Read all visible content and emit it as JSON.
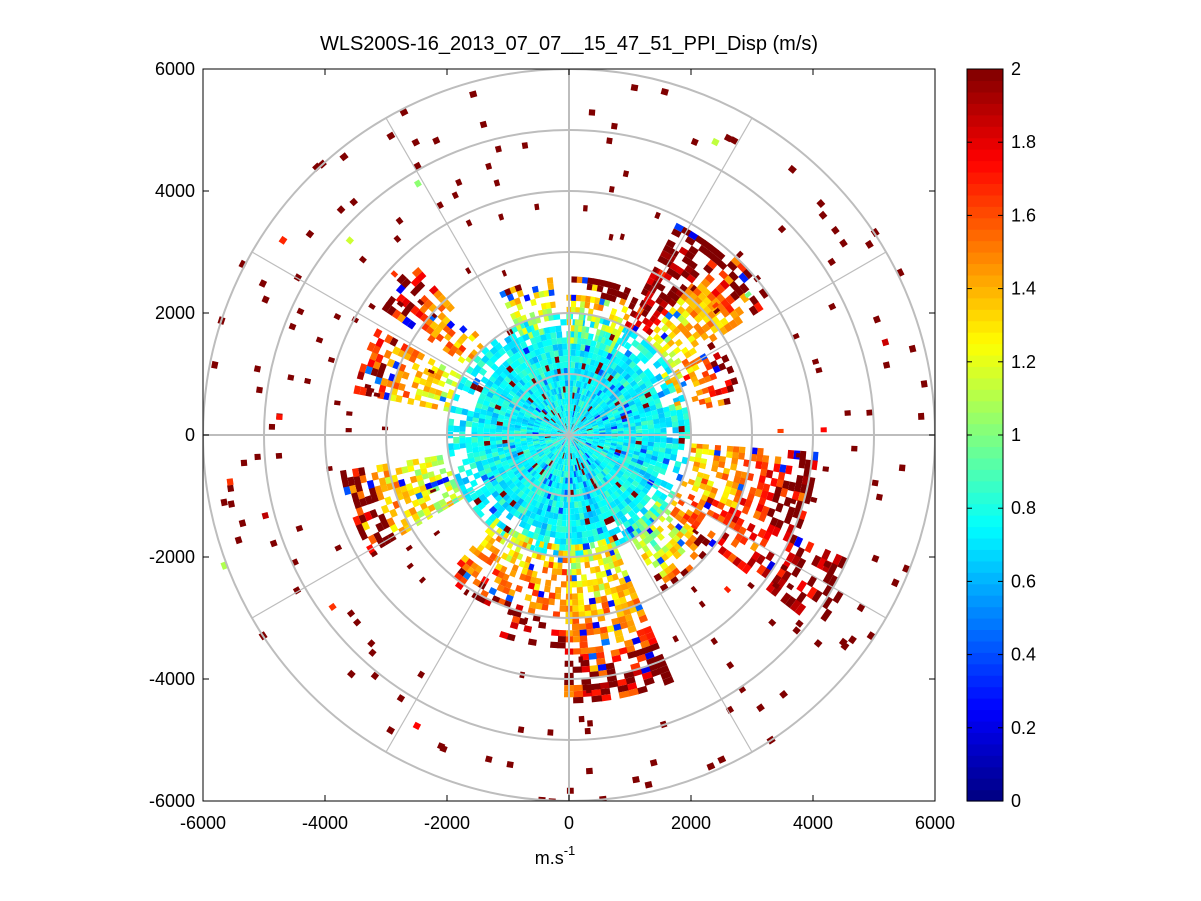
{
  "chart_data": {
    "type": "heatmap",
    "subtype": "polar-ppi",
    "title": "WLS200S-16_2013_07_07__15_47_51_PPI_Disp (m/s)",
    "xlabel": "m.s",
    "xlabel_superscript": "-1",
    "ylabel": "",
    "xlim": [
      -6000,
      6000
    ],
    "ylim": [
      -6000,
      6000
    ],
    "xticks": [
      -6000,
      -4000,
      -2000,
      0,
      2000,
      4000,
      6000
    ],
    "yticks": [
      -6000,
      -4000,
      -2000,
      0,
      2000,
      4000,
      6000
    ],
    "xtick_labels": [
      "-6000",
      "-4000",
      "-2000",
      "0",
      "2000",
      "4000",
      "6000"
    ],
    "ytick_labels": [
      "-6000",
      "-4000",
      "-2000",
      "0",
      "2000",
      "4000",
      "6000"
    ],
    "polar_grid": {
      "rings": [
        1000,
        2000,
        3000,
        4000,
        5000,
        6000
      ],
      "spokes_deg": [
        0,
        30,
        60,
        90,
        120,
        150,
        180,
        210,
        240,
        270,
        300,
        330
      ]
    },
    "colorbar": {
      "colormap": "jet",
      "clim": [
        0,
        2
      ],
      "ticks": [
        0,
        0.2,
        0.4,
        0.6,
        0.8,
        1,
        1.2,
        1.4,
        1.6,
        1.8,
        2
      ],
      "tick_labels": [
        "0",
        "0.2",
        "0.4",
        "0.6",
        "0.8",
        "1",
        "1.2",
        "1.4",
        "1.6",
        "1.8",
        "2"
      ]
    },
    "range_gate_m": 100,
    "dense_region_radius_m": 2000,
    "sectors": [
      {
        "az_start": 0,
        "az_end": 28,
        "r_start": 1500,
        "r_end": 2600,
        "value_mean": 1.0,
        "density": 0.55
      },
      {
        "az_start": 28,
        "az_end": 40,
        "r_start": 2000,
        "r_end": 3900,
        "value_mean": 1.7,
        "density": 0.55
      },
      {
        "az_start": 40,
        "az_end": 58,
        "r_start": 2000,
        "r_end": 4000,
        "value_mean": 1.2,
        "density": 0.6
      },
      {
        "az_start": 58,
        "az_end": 80,
        "r_start": 1800,
        "r_end": 2900,
        "value_mean": 1.3,
        "density": 0.5
      },
      {
        "az_start": 95,
        "az_end": 115,
        "r_start": 2000,
        "r_end": 4100,
        "value_mean": 1.3,
        "density": 0.65
      },
      {
        "az_start": 115,
        "az_end": 128,
        "r_start": 2000,
        "r_end": 5200,
        "value_mean": 1.5,
        "density": 0.5
      },
      {
        "az_start": 128,
        "az_end": 150,
        "r_start": 1800,
        "r_end": 3000,
        "value_mean": 1.0,
        "density": 0.55
      },
      {
        "az_start": 158,
        "az_end": 182,
        "r_start": 1800,
        "r_end": 4400,
        "value_mean": 1.2,
        "density": 0.7
      },
      {
        "az_start": 182,
        "az_end": 200,
        "r_start": 1800,
        "r_end": 3500,
        "value_mean": 1.3,
        "density": 0.5
      },
      {
        "az_start": 200,
        "az_end": 222,
        "r_start": 1800,
        "r_end": 3100,
        "value_mean": 1.2,
        "density": 0.6
      },
      {
        "az_start": 240,
        "az_end": 262,
        "r_start": 2000,
        "r_end": 3800,
        "value_mean": 1.1,
        "density": 0.6
      },
      {
        "az_start": 282,
        "az_end": 300,
        "r_start": 2000,
        "r_end": 3600,
        "value_mean": 1.2,
        "density": 0.6
      },
      {
        "az_start": 305,
        "az_end": 318,
        "r_start": 2000,
        "r_end": 3800,
        "value_mean": 1.3,
        "density": 0.55
      },
      {
        "az_start": 335,
        "az_end": 355,
        "r_start": 1700,
        "r_end": 2600,
        "value_mean": 1.0,
        "density": 0.45
      }
    ],
    "scatter_outliers": {
      "count": 210,
      "r_min": 2000,
      "r_max": 6000,
      "value": 2.0
    }
  }
}
